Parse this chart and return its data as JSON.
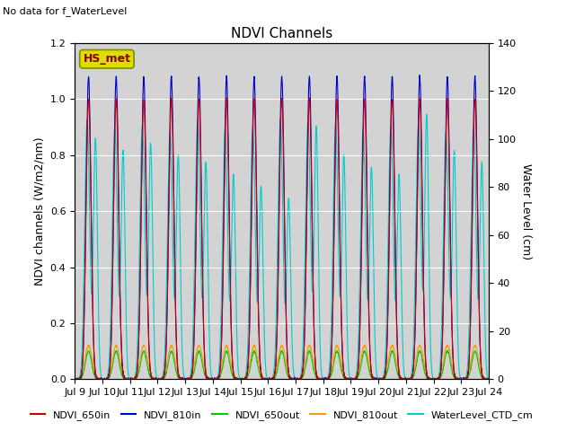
{
  "title": "NDVI Channels",
  "no_data_text": "No data for f_WaterLevel",
  "hs_met_label": "HS_met",
  "ylabel_left": "NDVI channels (W/m2/nm)",
  "ylabel_right": "Water Level (cm)",
  "ylim_left": [
    0,
    1.2
  ],
  "ylim_right": [
    0,
    140
  ],
  "xlim": [
    0,
    15
  ],
  "xtick_labels": [
    "Jul 9",
    "Jul 10",
    "Jul 11",
    "Jul 12",
    "Jul 13",
    "Jul 14",
    "Jul 15",
    "Jul 16",
    "Jul 17",
    "Jul 18",
    "Jul 19",
    "Jul 20",
    "Jul 21",
    "Jul 22",
    "Jul 23",
    "Jul 24"
  ],
  "xtick_positions": [
    0,
    1,
    2,
    3,
    4,
    5,
    6,
    7,
    8,
    9,
    10,
    11,
    12,
    13,
    14,
    15
  ],
  "colors": {
    "NDVI_650in": "#cc0000",
    "NDVI_810in": "#0000cc",
    "NDVI_650out": "#00cc00",
    "NDVI_810out": "#ff9900",
    "WaterLevel_CTD_cm": "#00cccc"
  },
  "legend_entries": [
    "NDVI_650in",
    "NDVI_810in",
    "NDVI_650out",
    "NDVI_810out",
    "WaterLevel_CTD_cm"
  ],
  "background_color": "#d3d3d3",
  "title_fontsize": 11,
  "axis_fontsize": 9,
  "tick_fontsize": 8,
  "legend_fontsize": 8
}
